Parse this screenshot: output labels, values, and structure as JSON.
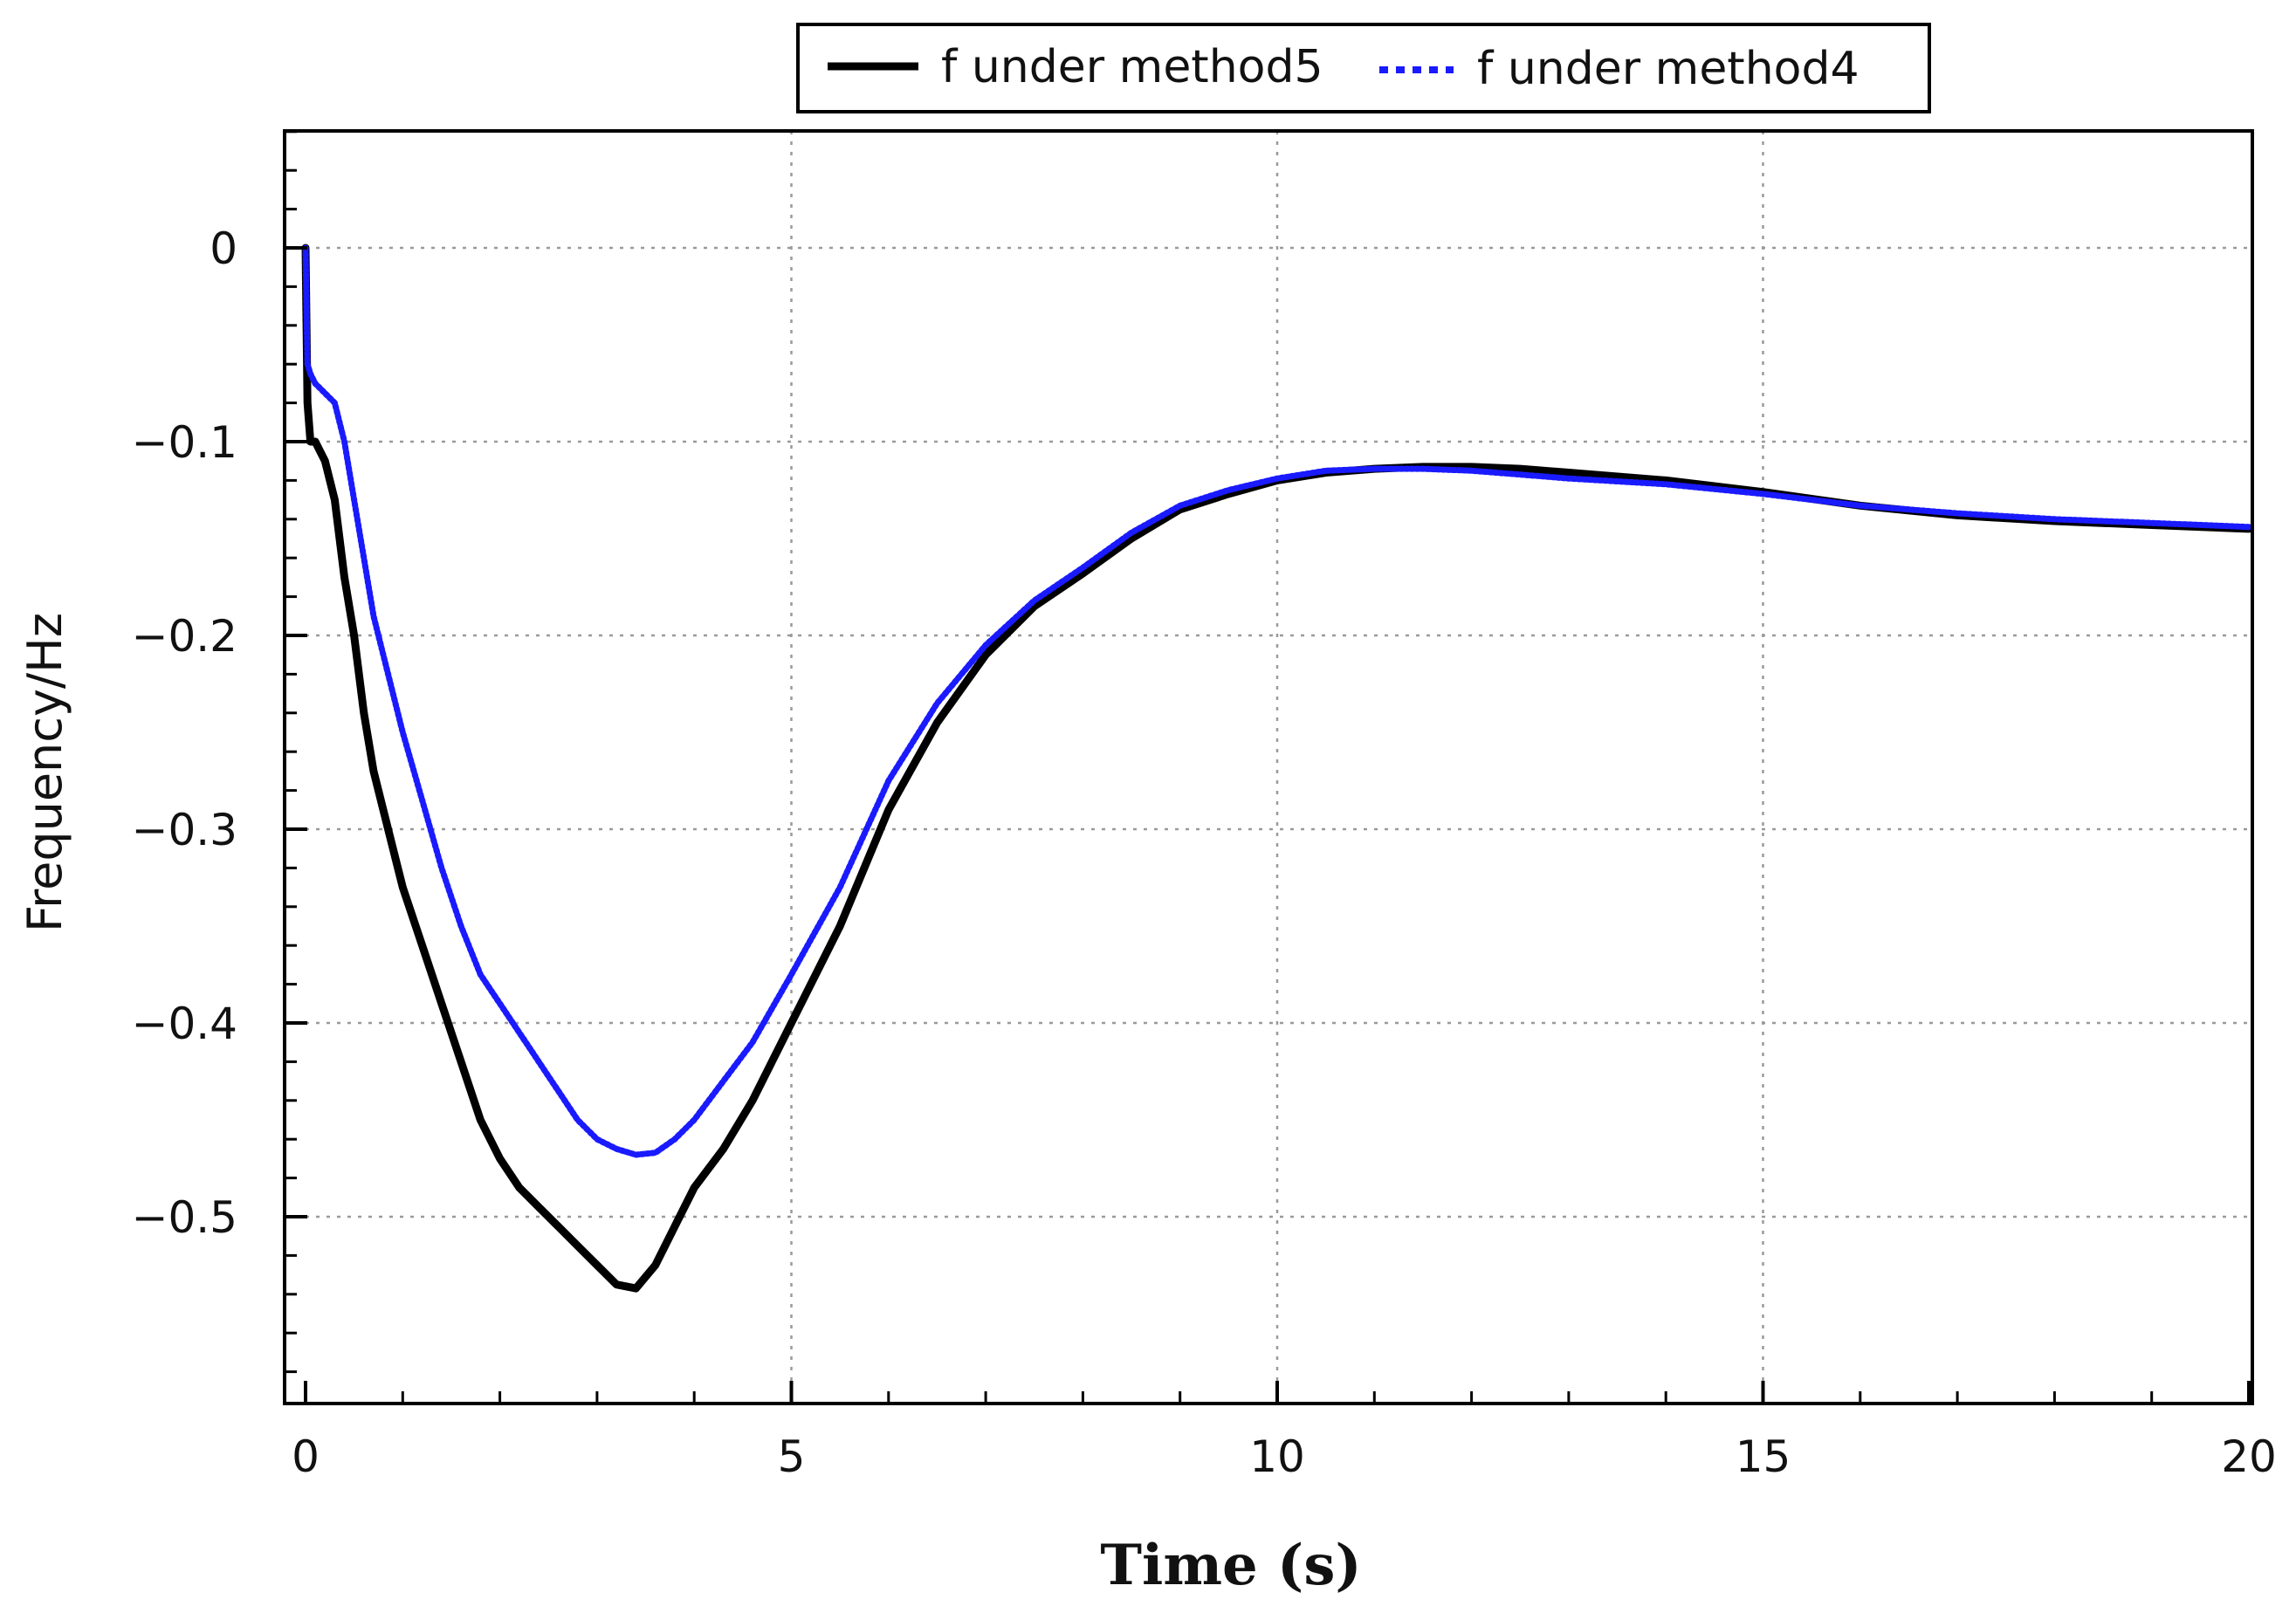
{
  "chart_data": {
    "type": "line",
    "title": "",
    "xlabel": "Time (s)",
    "ylabel": "Frequency/Hz",
    "xlim": [
      0,
      20
    ],
    "ylim": [
      -0.59,
      0.06
    ],
    "x_ticks": [
      0,
      5,
      10,
      15,
      20
    ],
    "y_ticks": [
      0,
      -0.1,
      -0.2,
      -0.3,
      -0.4,
      -0.5
    ],
    "x_tick_labels": [
      "0",
      "5",
      "10",
      "15",
      "20"
    ],
    "y_tick_labels": [
      "0",
      "−0.1",
      "−0.2",
      "−0.3",
      "−0.4",
      "−0.5"
    ],
    "grid": true,
    "legend_position": "top-center",
    "series": [
      {
        "name": "f under method5",
        "color": "#000000",
        "style": "solid",
        "x": [
          0,
          0.02,
          0.05,
          0.1,
          0.2,
          0.3,
          0.4,
          0.5,
          0.6,
          0.7,
          0.8,
          1.0,
          1.2,
          1.4,
          1.6,
          1.8,
          2.0,
          2.2,
          2.4,
          2.6,
          2.8,
          3.0,
          3.2,
          3.4,
          3.6,
          3.8,
          4.0,
          4.3,
          4.6,
          5.0,
          5.5,
          6.0,
          6.5,
          7.0,
          7.5,
          8.0,
          8.5,
          9.0,
          9.5,
          10.0,
          10.5,
          11.0,
          11.5,
          12.0,
          12.5,
          13.0,
          14.0,
          15.0,
          16.0,
          17.0,
          18.0,
          19.0,
          20.0
        ],
        "y": [
          0,
          -0.08,
          -0.1,
          -0.1,
          -0.11,
          -0.13,
          -0.17,
          -0.2,
          -0.24,
          -0.27,
          -0.29,
          -0.33,
          -0.36,
          -0.39,
          -0.42,
          -0.45,
          -0.47,
          -0.485,
          -0.495,
          -0.505,
          -0.515,
          -0.525,
          -0.535,
          -0.537,
          -0.525,
          -0.505,
          -0.485,
          -0.465,
          -0.44,
          -0.4,
          -0.35,
          -0.29,
          -0.245,
          -0.21,
          -0.185,
          -0.168,
          -0.15,
          -0.135,
          -0.127,
          -0.12,
          -0.116,
          -0.114,
          -0.113,
          -0.113,
          -0.114,
          -0.116,
          -0.12,
          -0.126,
          -0.133,
          -0.138,
          -0.141,
          -0.143,
          -0.145
        ]
      },
      {
        "name": "f under method4",
        "color": "#1a1aff",
        "style": "dotted",
        "x": [
          0,
          0.02,
          0.05,
          0.1,
          0.2,
          0.3,
          0.4,
          0.5,
          0.6,
          0.7,
          0.8,
          1.0,
          1.2,
          1.4,
          1.6,
          1.8,
          2.0,
          2.2,
          2.4,
          2.6,
          2.8,
          3.0,
          3.2,
          3.4,
          3.6,
          3.8,
          4.0,
          4.3,
          4.6,
          5.0,
          5.5,
          6.0,
          6.5,
          7.0,
          7.5,
          8.0,
          8.5,
          9.0,
          9.5,
          10.0,
          10.5,
          11.0,
          11.5,
          12.0,
          12.5,
          13.0,
          14.0,
          15.0,
          16.0,
          17.0,
          18.0,
          19.0,
          20.0
        ],
        "y": [
          0,
          -0.06,
          -0.065,
          -0.07,
          -0.075,
          -0.08,
          -0.1,
          -0.13,
          -0.16,
          -0.19,
          -0.21,
          -0.25,
          -0.285,
          -0.32,
          -0.35,
          -0.375,
          -0.39,
          -0.405,
          -0.42,
          -0.435,
          -0.45,
          -0.46,
          -0.465,
          -0.468,
          -0.467,
          -0.46,
          -0.45,
          -0.43,
          -0.41,
          -0.375,
          -0.33,
          -0.275,
          -0.235,
          -0.205,
          -0.182,
          -0.165,
          -0.147,
          -0.133,
          -0.125,
          -0.119,
          -0.115,
          -0.114,
          -0.114,
          -0.115,
          -0.117,
          -0.119,
          -0.122,
          -0.127,
          -0.133,
          -0.137,
          -0.14,
          -0.142,
          -0.144
        ]
      }
    ]
  }
}
